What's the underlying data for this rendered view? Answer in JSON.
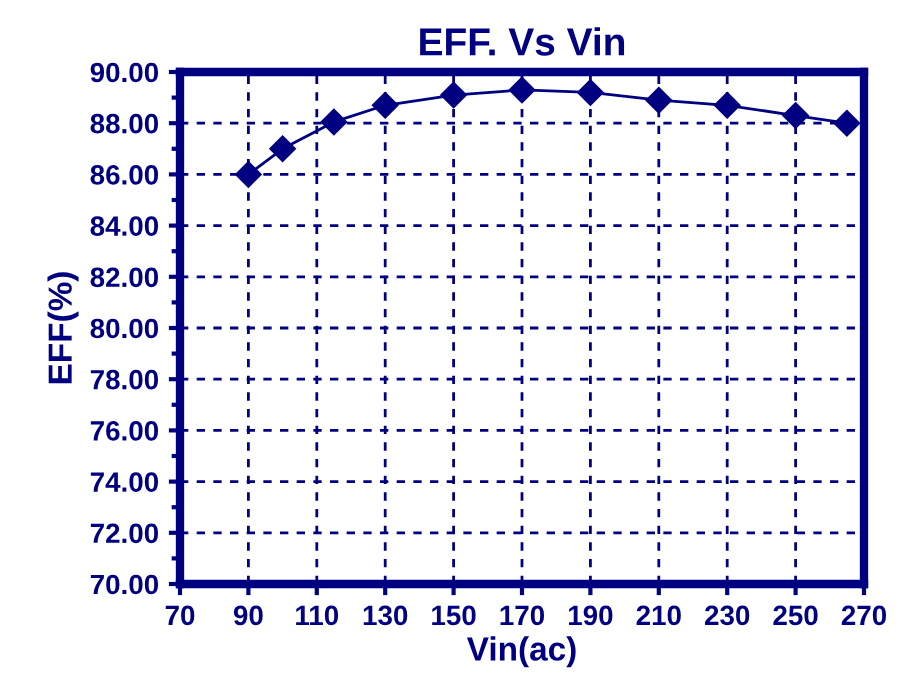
{
  "chart_data": {
    "type": "line",
    "title": "EFF. Vs Vin",
    "xlabel": "Vin(ac)",
    "ylabel": "EFF(%)",
    "x": [
      90,
      100,
      115,
      130,
      150,
      170,
      190,
      210,
      230,
      250,
      265
    ],
    "series": [
      {
        "color": "#000080",
        "values": [
          86.0,
          87.0,
          88.05,
          88.7,
          89.1,
          89.3,
          89.2,
          88.9,
          88.7,
          88.3,
          88.0
        ]
      }
    ],
    "xlim": [
      70,
      270
    ],
    "xticks": [
      70,
      90,
      110,
      130,
      150,
      170,
      190,
      210,
      230,
      250,
      270
    ],
    "ylim": [
      70,
      90
    ],
    "yticks": [
      {
        "value": 70,
        "label": "70.00"
      },
      {
        "value": 72,
        "label": "72.00"
      },
      {
        "value": 74,
        "label": "74.00"
      },
      {
        "value": 76,
        "label": "76.00"
      },
      {
        "value": 78,
        "label": "78.00"
      },
      {
        "value": 80,
        "label": "80.00"
      },
      {
        "value": 82,
        "label": "82.00"
      },
      {
        "value": 84,
        "label": "84.00"
      },
      {
        "value": 86,
        "label": "86.00"
      },
      {
        "value": 88,
        "label": "88.00"
      },
      {
        "value": 90,
        "label": "90.00"
      }
    ],
    "grid": true,
    "marker": "diamond",
    "line_style": "solid",
    "legend": false
  }
}
